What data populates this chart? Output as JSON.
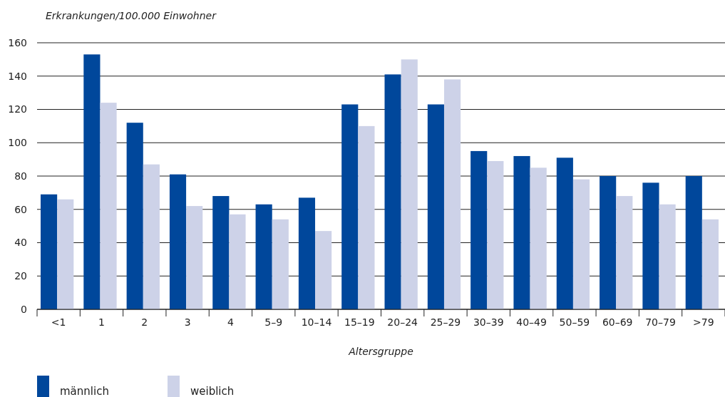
{
  "chart_data": {
    "type": "bar",
    "ylabel": "Erkrankungen/100.000 Einwohner",
    "xlabel": "Altersgruppe",
    "categories": [
      "<1",
      "1",
      "2",
      "3",
      "4",
      "5–9",
      "10–14",
      "15–19",
      "20–24",
      "25–29",
      "30–39",
      "40–49",
      "50–59",
      "60–69",
      "70–79",
      ">79"
    ],
    "series": [
      {
        "name": "männlich",
        "color": "#00479b",
        "values": [
          69,
          153,
          112,
          81,
          68,
          63,
          67,
          123,
          141,
          123,
          95,
          92,
          91,
          80,
          76,
          80
        ]
      },
      {
        "name": "weiblich",
        "color": "#cdd2e8",
        "values": [
          66,
          124,
          87,
          62,
          57,
          54,
          47,
          110,
          150,
          138,
          89,
          85,
          78,
          68,
          63,
          54
        ]
      }
    ],
    "ylim": [
      0,
      160
    ],
    "yticks": [
      0,
      20,
      40,
      60,
      80,
      100,
      120,
      140,
      160
    ],
    "grid": "y",
    "legend": "bottom left"
  }
}
